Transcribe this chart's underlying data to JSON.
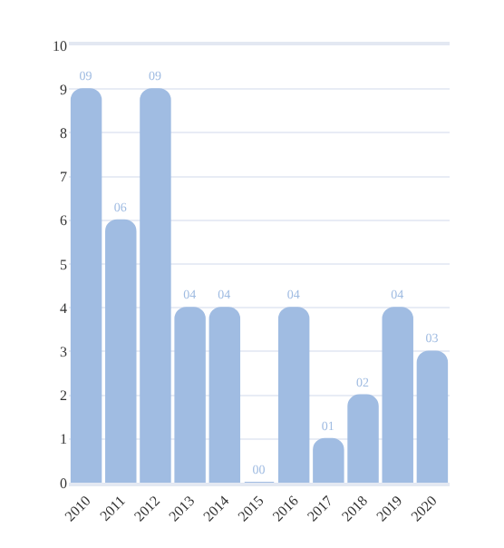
{
  "chart_data": {
    "type": "bar",
    "categories": [
      "2010",
      "2011",
      "2012",
      "2013",
      "2014",
      "2015",
      "2016",
      "2017",
      "2018",
      "2019",
      "2020"
    ],
    "values": [
      9,
      6,
      9,
      4,
      4,
      0,
      4,
      1,
      2,
      4,
      3
    ],
    "value_labels": [
      "09",
      "06",
      "09",
      "04",
      "04",
      "00",
      "04",
      "01",
      "02",
      "04",
      "03"
    ],
    "color": "#a0bce2",
    "ylim": [
      0,
      10
    ],
    "yticks": [
      0,
      1,
      2,
      3,
      4,
      5,
      6,
      7,
      8,
      9,
      10
    ],
    "grid": "y",
    "legend": false
  }
}
